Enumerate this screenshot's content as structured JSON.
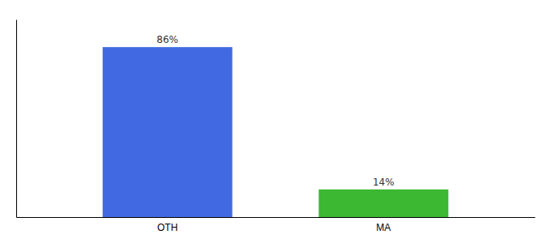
{
  "chart_data": {
    "type": "bar",
    "categories": [
      "OTH",
      "MA"
    ],
    "values": [
      86,
      14
    ],
    "value_labels": [
      "86%",
      "14%"
    ],
    "colors": [
      "#4169e1",
      "#3cb832"
    ],
    "ylim": [
      0,
      100
    ],
    "data_labels": true,
    "tick_labels": "x",
    "grid": false
  }
}
